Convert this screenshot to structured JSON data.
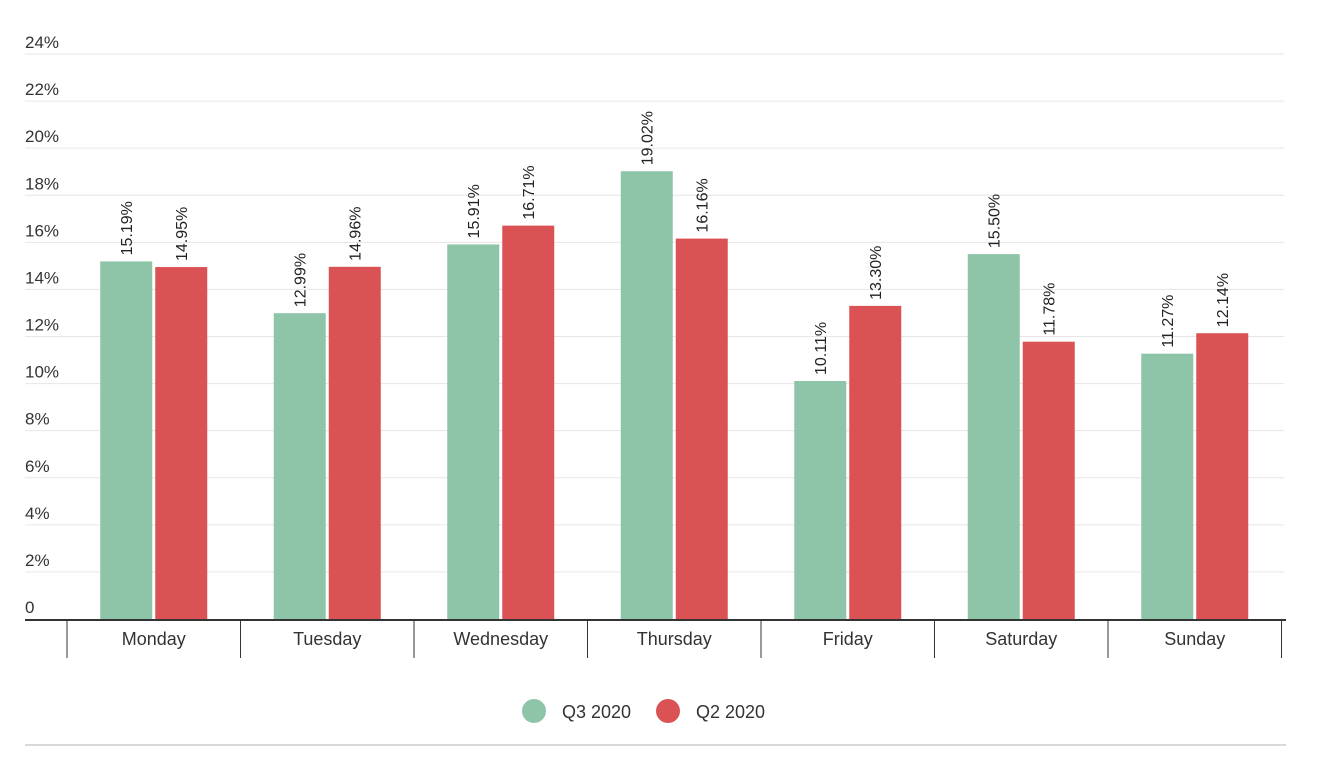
{
  "chart_data": {
    "type": "bar",
    "title": "",
    "xlabel": "",
    "ylabel": "",
    "categories": [
      "Monday",
      "Tuesday",
      "Wednesday",
      "Thursday",
      "Friday",
      "Saturday",
      "Sunday"
    ],
    "series": [
      {
        "name": "Q3 2020",
        "color": "#8ec4a8",
        "values": [
          15.19,
          12.99,
          15.91,
          19.02,
          10.11,
          15.5,
          11.27
        ],
        "labels": [
          "15.19%",
          "12.99%",
          "15.91%",
          "19.02%",
          "10.11%",
          "15.50%",
          "11.27%"
        ]
      },
      {
        "name": "Q2 2020",
        "color": "#db5254",
        "values": [
          14.95,
          14.96,
          16.71,
          16.16,
          13.3,
          11.78,
          12.14
        ],
        "labels": [
          "14.95%",
          "14.96%",
          "16.71%",
          "16.16%",
          "13.30%",
          "11.78%",
          "12.14%"
        ]
      }
    ],
    "ylim": [
      0,
      24
    ],
    "yticks": [
      "0",
      "2%",
      "4%",
      "6%",
      "8%",
      "10%",
      "12%",
      "14%",
      "16%",
      "18%",
      "20%",
      "22%",
      "24%"
    ],
    "grid": true,
    "legend_position": "bottom-center"
  }
}
